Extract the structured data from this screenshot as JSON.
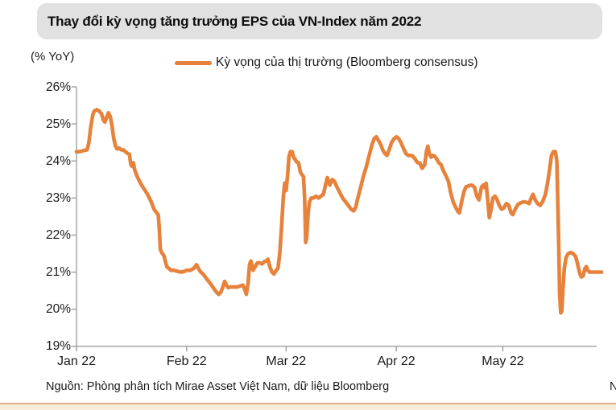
{
  "header": {
    "title": "Thay đổi kỳ vọng tăng trưởng EPS của VN-Index năm 2022"
  },
  "chart": {
    "unit_label": "(% YoY)",
    "legend": {
      "label": "Kỳ vọng của thị trường (Bloomberg consensus)",
      "color": "#E6823B"
    },
    "axis_color": "#9f9f9f"
  },
  "chart_data": {
    "type": "line",
    "title": "Thay đổi kỳ vọng tăng trưởng EPS của VN-Index năm 2022",
    "ylabel": "(% YoY)",
    "ylim": [
      19,
      26
    ],
    "grid": false,
    "legend_position": "top",
    "y_ticks": [
      {
        "value": 26,
        "label": "26%"
      },
      {
        "value": 25,
        "label": "25%"
      },
      {
        "value": 24,
        "label": "24%"
      },
      {
        "value": 23,
        "label": "23%"
      },
      {
        "value": 22,
        "label": "22%"
      },
      {
        "value": 21,
        "label": "21%"
      },
      {
        "value": 20,
        "label": "20%"
      },
      {
        "value": 19,
        "label": "19%"
      }
    ],
    "x_ticks": [
      {
        "label": "Jan 22",
        "day": 0
      },
      {
        "label": "Feb 22",
        "day": 31
      },
      {
        "label": "Mar 22",
        "day": 59
      },
      {
        "label": "Apr 22",
        "day": 90
      },
      {
        "label": "May 22",
        "day": 120
      }
    ],
    "series": [
      {
        "name": "Kỳ vọng của thị trường (Bloomberg consensus)",
        "x_unit": "days since 2022-01-01",
        "y_unit": "% YoY EPS growth expectation",
        "points": [
          [
            0,
            24.25
          ],
          [
            1,
            24.25
          ],
          [
            2,
            24.28
          ],
          [
            3,
            24.3
          ],
          [
            3.5,
            24.5
          ],
          [
            4,
            24.9
          ],
          [
            4.6,
            25.25
          ],
          [
            5,
            25.35
          ],
          [
            5.6,
            25.38
          ],
          [
            6.2,
            25.36
          ],
          [
            7,
            25.28
          ],
          [
            7.6,
            25.1
          ],
          [
            8,
            25.05
          ],
          [
            8.6,
            25.2
          ],
          [
            9,
            25.3
          ],
          [
            9.5,
            25.2
          ],
          [
            10,
            24.95
          ],
          [
            10.5,
            24.6
          ],
          [
            11,
            24.4
          ],
          [
            11.5,
            24.32
          ],
          [
            12,
            24.35
          ],
          [
            12.6,
            24.3
          ],
          [
            13.2,
            24.3
          ],
          [
            13.8,
            24.25
          ],
          [
            14.4,
            24.2
          ],
          [
            14.9,
            24.18
          ],
          [
            15.3,
            23.9
          ],
          [
            15.7,
            23.85
          ],
          [
            16,
            23.95
          ],
          [
            16.4,
            23.75
          ],
          [
            17,
            23.6
          ],
          [
            18,
            23.4
          ],
          [
            19,
            23.25
          ],
          [
            20,
            23.1
          ],
          [
            21,
            22.9
          ],
          [
            21.8,
            22.7
          ],
          [
            22.4,
            22.62
          ],
          [
            23,
            22.55
          ],
          [
            23.3,
            22.2
          ],
          [
            23.6,
            21.62
          ],
          [
            24,
            21.52
          ],
          [
            24.6,
            21.45
          ],
          [
            25,
            21.3
          ],
          [
            25.4,
            21.15
          ],
          [
            26,
            21.1
          ],
          [
            26.6,
            21.05
          ],
          [
            27.5,
            21.05
          ],
          [
            28.5,
            21.02
          ],
          [
            29.5,
            21.0
          ],
          [
            30.3,
            21.02
          ],
          [
            31,
            21.05
          ],
          [
            32,
            21.05
          ],
          [
            33,
            21.1
          ],
          [
            33.8,
            21.2
          ],
          [
            34.3,
            21.1
          ],
          [
            35,
            21.0
          ],
          [
            35.6,
            20.95
          ],
          [
            36.4,
            20.85
          ],
          [
            37.2,
            20.75
          ],
          [
            38,
            20.65
          ],
          [
            38.7,
            20.55
          ],
          [
            39.5,
            20.45
          ],
          [
            40,
            20.4
          ],
          [
            40.6,
            20.45
          ],
          [
            41.2,
            20.6
          ],
          [
            41.7,
            20.75
          ],
          [
            42.2,
            20.65
          ],
          [
            42.7,
            20.58
          ],
          [
            43.3,
            20.6
          ],
          [
            44.2,
            20.6
          ],
          [
            45.2,
            20.6
          ],
          [
            46.2,
            20.63
          ],
          [
            46.8,
            20.65
          ],
          [
            47.3,
            20.55
          ],
          [
            47.8,
            20.4
          ],
          [
            48.3,
            20.7
          ],
          [
            48.7,
            21.2
          ],
          [
            49.1,
            21.3
          ],
          [
            49.7,
            21.05
          ],
          [
            50.3,
            21.15
          ],
          [
            50.9,
            21.25
          ],
          [
            51.6,
            21.25
          ],
          [
            52.2,
            21.22
          ],
          [
            52.8,
            21.28
          ],
          [
            53.4,
            21.3
          ],
          [
            53.9,
            21.35
          ],
          [
            54.4,
            21.15
          ],
          [
            55,
            21.0
          ],
          [
            55.6,
            20.95
          ],
          [
            56.2,
            21.05
          ],
          [
            56.7,
            21.1
          ],
          [
            57.2,
            21.5
          ],
          [
            57.7,
            22.2
          ],
          [
            58.2,
            23.0
          ],
          [
            58.6,
            23.4
          ],
          [
            59,
            23.2
          ],
          [
            59.4,
            23.6
          ],
          [
            59.8,
            24.1
          ],
          [
            60.2,
            24.25
          ],
          [
            60.7,
            24.25
          ],
          [
            61.1,
            24.1
          ],
          [
            61.5,
            24.05
          ],
          [
            62,
            23.97
          ],
          [
            62.5,
            23.95
          ],
          [
            63,
            23.7
          ],
          [
            63.5,
            23.62
          ],
          [
            63.9,
            23.58
          ],
          [
            64.2,
            23.0
          ],
          [
            64.5,
            21.8
          ],
          [
            64.8,
            21.95
          ],
          [
            65.2,
            22.6
          ],
          [
            65.6,
            22.9
          ],
          [
            66.1,
            23.0
          ],
          [
            66.7,
            23.0
          ],
          [
            67.4,
            23.05
          ],
          [
            68.1,
            23.0
          ],
          [
            68.8,
            23.05
          ],
          [
            69.5,
            23.1
          ],
          [
            70.1,
            23.35
          ],
          [
            70.6,
            23.55
          ],
          [
            71.3,
            23.35
          ],
          [
            72,
            23.5
          ],
          [
            72.6,
            23.45
          ],
          [
            73.3,
            23.3
          ],
          [
            74.1,
            23.15
          ],
          [
            74.9,
            23.0
          ],
          [
            75.7,
            22.9
          ],
          [
            76.5,
            22.8
          ],
          [
            77.3,
            22.7
          ],
          [
            78,
            22.65
          ],
          [
            78.6,
            22.75
          ],
          [
            79.2,
            23.0
          ],
          [
            80,
            23.3
          ],
          [
            80.8,
            23.6
          ],
          [
            81.6,
            23.85
          ],
          [
            82.4,
            24.15
          ],
          [
            83.2,
            24.45
          ],
          [
            83.8,
            24.6
          ],
          [
            84.4,
            24.65
          ],
          [
            85,
            24.55
          ],
          [
            85.6,
            24.45
          ],
          [
            86.2,
            24.3
          ],
          [
            86.8,
            24.2
          ],
          [
            87.4,
            24.15
          ],
          [
            88,
            24.3
          ],
          [
            88.7,
            24.5
          ],
          [
            89.4,
            24.6
          ],
          [
            90.1,
            24.65
          ],
          [
            90.7,
            24.6
          ],
          [
            91.3,
            24.5
          ],
          [
            92,
            24.35
          ],
          [
            92.7,
            24.2
          ],
          [
            93.4,
            24.15
          ],
          [
            94.1,
            24.15
          ],
          [
            94.7,
            24.13
          ],
          [
            95.3,
            24.05
          ],
          [
            96,
            23.95
          ],
          [
            96.6,
            23.95
          ],
          [
            97.3,
            23.8
          ],
          [
            98,
            23.9
          ],
          [
            98.5,
            24.25
          ],
          [
            98.9,
            24.4
          ],
          [
            99.3,
            24.2
          ],
          [
            99.8,
            24.1
          ],
          [
            100.3,
            24.15
          ],
          [
            100.8,
            24.13
          ],
          [
            101.4,
            24.05
          ],
          [
            102,
            23.95
          ],
          [
            102.6,
            23.9
          ],
          [
            103.2,
            23.75
          ],
          [
            104,
            23.6
          ],
          [
            104.7,
            23.45
          ],
          [
            105.3,
            23.15
          ],
          [
            106,
            22.9
          ],
          [
            106.7,
            22.75
          ],
          [
            107.4,
            22.63
          ],
          [
            107.8,
            22.6
          ],
          [
            108.4,
            22.9
          ],
          [
            109,
            23.15
          ],
          [
            109.6,
            23.3
          ],
          [
            110.4,
            23.33
          ],
          [
            111.2,
            23.35
          ],
          [
            112,
            23.3
          ],
          [
            112.7,
            23.05
          ],
          [
            113.3,
            22.95
          ],
          [
            114,
            23.3
          ],
          [
            114.5,
            23.35
          ],
          [
            114.9,
            23.28
          ],
          [
            115.3,
            23.4
          ],
          [
            115.8,
            22.9
          ],
          [
            116.2,
            22.47
          ],
          [
            116.7,
            22.7
          ],
          [
            117.2,
            23.0
          ],
          [
            117.8,
            23.05
          ],
          [
            118.4,
            22.95
          ],
          [
            119,
            22.8
          ],
          [
            119.6,
            22.7
          ],
          [
            120.2,
            22.72
          ],
          [
            121,
            22.85
          ],
          [
            121.7,
            22.8
          ],
          [
            122.3,
            22.6
          ],
          [
            122.8,
            22.55
          ],
          [
            123.5,
            22.7
          ],
          [
            124.2,
            22.82
          ],
          [
            125,
            22.87
          ],
          [
            126,
            22.9
          ],
          [
            126.7,
            22.88
          ],
          [
            127.4,
            22.85
          ],
          [
            128,
            23.0
          ],
          [
            128.5,
            23.1
          ],
          [
            129.1,
            22.95
          ],
          [
            129.8,
            22.85
          ],
          [
            130.5,
            22.8
          ],
          [
            131.2,
            22.9
          ],
          [
            132,
            23.1
          ],
          [
            132.6,
            23.4
          ],
          [
            133.2,
            23.8
          ],
          [
            133.7,
            24.15
          ],
          [
            134.2,
            24.25
          ],
          [
            134.8,
            24.25
          ],
          [
            135.2,
            24.0
          ],
          [
            135.5,
            22.8
          ],
          [
            135.8,
            21.5
          ],
          [
            136,
            20.4
          ],
          [
            136.3,
            19.9
          ],
          [
            136.6,
            19.95
          ],
          [
            136.9,
            20.5
          ],
          [
            137.3,
            21.1
          ],
          [
            137.8,
            21.4
          ],
          [
            138.4,
            21.5
          ],
          [
            139.1,
            21.53
          ],
          [
            139.8,
            21.5
          ],
          [
            140.5,
            21.42
          ],
          [
            141.1,
            21.2
          ],
          [
            141.7,
            20.95
          ],
          [
            142.1,
            20.87
          ],
          [
            142.6,
            20.9
          ],
          [
            143.1,
            21.1
          ],
          [
            143.5,
            21.15
          ],
          [
            143.9,
            21.05
          ],
          [
            144.4,
            21.0
          ],
          [
            145.2,
            21.0
          ],
          [
            146.2,
            21.0
          ],
          [
            147,
            21.0
          ],
          [
            147.8,
            21.0
          ]
        ]
      }
    ]
  },
  "footer": {
    "source": "Nguồn: Phòng phân tích Mirae Asset Việt Nam, dữ liệu Bloomberg",
    "right_edge_fragment": "N"
  }
}
